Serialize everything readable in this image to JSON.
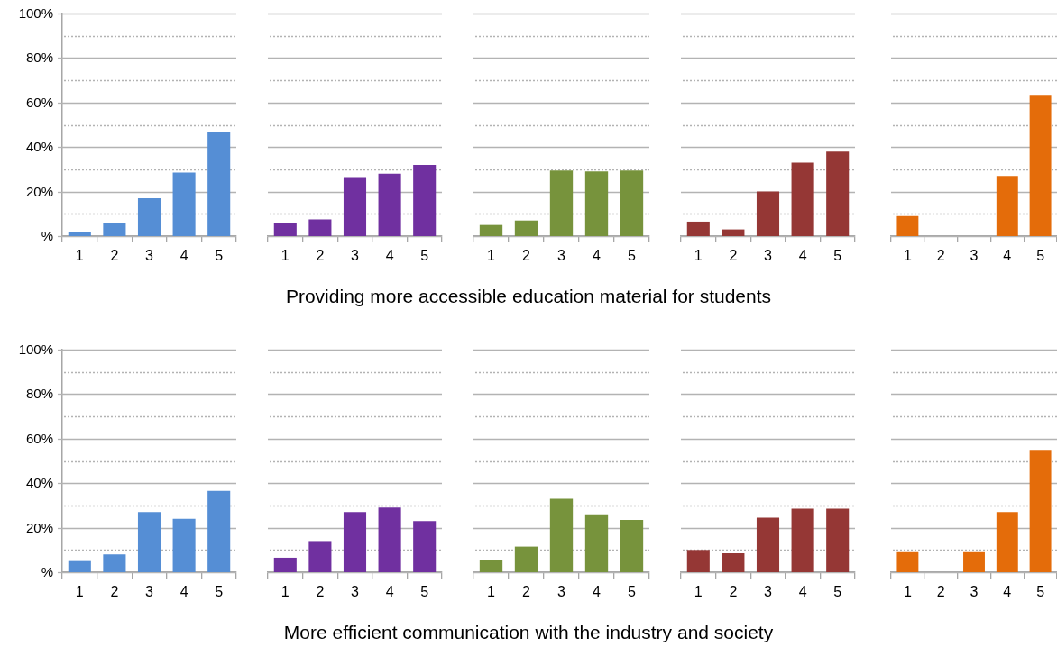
{
  "chart_data": [
    {
      "type": "bar",
      "categories": [
        "1",
        "2",
        "3",
        "4",
        "5"
      ],
      "values": [
        2,
        6,
        17,
        28.5,
        47
      ],
      "color": "#558ed5",
      "ylim": [
        0,
        100
      ],
      "yticks": [
        {
          "value": 0,
          "label": "%"
        },
        {
          "value": 10,
          "label": null
        },
        {
          "value": 20,
          "label": "20%"
        },
        {
          "value": 30,
          "label": null
        },
        {
          "value": 40,
          "label": "40%"
        },
        {
          "value": 50,
          "label": null
        },
        {
          "value": 60,
          "label": "60%"
        },
        {
          "value": 70,
          "label": null
        },
        {
          "value": 80,
          "label": "80%"
        },
        {
          "value": 90,
          "label": null
        },
        {
          "value": 100,
          "label": "100%"
        }
      ],
      "grid": "y"
    },
    {
      "type": "bar",
      "categories": [
        "1",
        "2",
        "3",
        "4",
        "5"
      ],
      "values": [
        6,
        7.5,
        26.5,
        28,
        32
      ],
      "color": "#7030a0",
      "ylim": [
        0,
        100
      ],
      "yticks": [
        0,
        {
          "value": 10,
          "label": null
        },
        20,
        {
          "value": 30,
          "label": null
        },
        40,
        {
          "value": 50,
          "label": null
        },
        60,
        {
          "value": 70,
          "label": null
        },
        80,
        {
          "value": 90,
          "label": null
        },
        100
      ],
      "grid": "y",
      "tick_labels": "x"
    },
    {
      "type": "bar",
      "categories": [
        "1",
        "2",
        "3",
        "4",
        "5"
      ],
      "values": [
        5,
        7,
        29.5,
        29,
        29.5
      ],
      "color": "#77933c",
      "ylim": [
        0,
        100
      ],
      "yticks": [
        0,
        {
          "value": 10,
          "label": null
        },
        20,
        {
          "value": 30,
          "label": null
        },
        40,
        {
          "value": 50,
          "label": null
        },
        60,
        {
          "value": 70,
          "label": null
        },
        80,
        {
          "value": 90,
          "label": null
        },
        100
      ],
      "grid": "y",
      "tick_labels": "x",
      "xlabel": "Providing more accessible education material for students"
    },
    {
      "type": "bar",
      "categories": [
        "1",
        "2",
        "3",
        "4",
        "5"
      ],
      "values": [
        6.5,
        3,
        20,
        33,
        38
      ],
      "color": "#953735",
      "ylim": [
        0,
        100
      ],
      "yticks": [
        0,
        {
          "value": 10,
          "label": null
        },
        20,
        {
          "value": 30,
          "label": null
        },
        40,
        {
          "value": 50,
          "label": null
        },
        60,
        {
          "value": 70,
          "label": null
        },
        80,
        {
          "value": 90,
          "label": null
        },
        100
      ],
      "grid": "y",
      "tick_labels": "x"
    },
    {
      "type": "bar",
      "categories": [
        "1",
        "2",
        "3",
        "4",
        "5"
      ],
      "values": [
        9,
        0,
        0,
        27,
        63.5
      ],
      "color": "#e46c0a",
      "ylim": [
        0,
        100
      ],
      "yticks": [
        0,
        {
          "value": 10,
          "label": null
        },
        20,
        {
          "value": 30,
          "label": null
        },
        40,
        {
          "value": 50,
          "label": null
        },
        60,
        {
          "value": 70,
          "label": null
        },
        80,
        {
          "value": 90,
          "label": null
        },
        100
      ],
      "grid": "y",
      "tick_labels": "x"
    },
    {
      "type": "bar",
      "categories": [
        "1",
        "2",
        "3",
        "4",
        "5"
      ],
      "values": [
        5,
        8,
        27,
        24,
        36.5
      ],
      "color": "#558ed5",
      "ylim": [
        0,
        100
      ],
      "yticks": [
        {
          "value": 0,
          "label": "%"
        },
        {
          "value": 10,
          "label": null
        },
        {
          "value": 20,
          "label": "20%"
        },
        {
          "value": 30,
          "label": null
        },
        {
          "value": 40,
          "label": "40%"
        },
        {
          "value": 50,
          "label": null
        },
        {
          "value": 60,
          "label": "60%"
        },
        {
          "value": 70,
          "label": null
        },
        {
          "value": 80,
          "label": "80%"
        },
        {
          "value": 90,
          "label": null
        },
        {
          "value": 100,
          "label": "100%"
        }
      ],
      "grid": "y"
    },
    {
      "type": "bar",
      "categories": [
        "1",
        "2",
        "3",
        "4",
        "5"
      ],
      "values": [
        6.5,
        14,
        27,
        29,
        23
      ],
      "color": "#7030a0",
      "ylim": [
        0,
        100
      ],
      "yticks": [
        0,
        {
          "value": 10,
          "label": null
        },
        20,
        {
          "value": 30,
          "label": null
        },
        40,
        {
          "value": 50,
          "label": null
        },
        60,
        {
          "value": 70,
          "label": null
        },
        80,
        {
          "value": 90,
          "label": null
        },
        100
      ],
      "grid": "y",
      "tick_labels": "x"
    },
    {
      "type": "bar",
      "categories": [
        "1",
        "2",
        "3",
        "4",
        "5"
      ],
      "values": [
        5.5,
        11.5,
        33,
        26,
        23.5
      ],
      "color": "#77933c",
      "ylim": [
        0,
        100
      ],
      "yticks": [
        0,
        {
          "value": 10,
          "label": null
        },
        20,
        {
          "value": 30,
          "label": null
        },
        40,
        {
          "value": 50,
          "label": null
        },
        60,
        {
          "value": 70,
          "label": null
        },
        80,
        {
          "value": 90,
          "label": null
        },
        100
      ],
      "grid": "y",
      "tick_labels": "x",
      "xlabel": "More efficient communication with the industry and society"
    },
    {
      "type": "bar",
      "categories": [
        "1",
        "2",
        "3",
        "4",
        "5"
      ],
      "values": [
        10,
        8.5,
        24.5,
        28.5,
        28.5
      ],
      "color": "#953735",
      "ylim": [
        0,
        100
      ],
      "yticks": [
        0,
        {
          "value": 10,
          "label": null
        },
        20,
        {
          "value": 30,
          "label": null
        },
        40,
        {
          "value": 50,
          "label": null
        },
        60,
        {
          "value": 70,
          "label": null
        },
        80,
        {
          "value": 90,
          "label": null
        },
        100
      ],
      "grid": "y",
      "tick_labels": "x"
    },
    {
      "type": "bar",
      "categories": [
        "1",
        "2",
        "3",
        "4",
        "5"
      ],
      "values": [
        9,
        0,
        9,
        27,
        55
      ],
      "color": "#e46c0a",
      "ylim": [
        0,
        100
      ],
      "yticks": [
        0,
        {
          "value": 10,
          "label": null
        },
        20,
        {
          "value": 30,
          "label": null
        },
        40,
        {
          "value": 50,
          "label": null
        },
        60,
        {
          "value": 70,
          "label": null
        },
        80,
        {
          "value": 90,
          "label": null
        },
        100
      ],
      "grid": "y",
      "tick_labels": "x"
    }
  ]
}
